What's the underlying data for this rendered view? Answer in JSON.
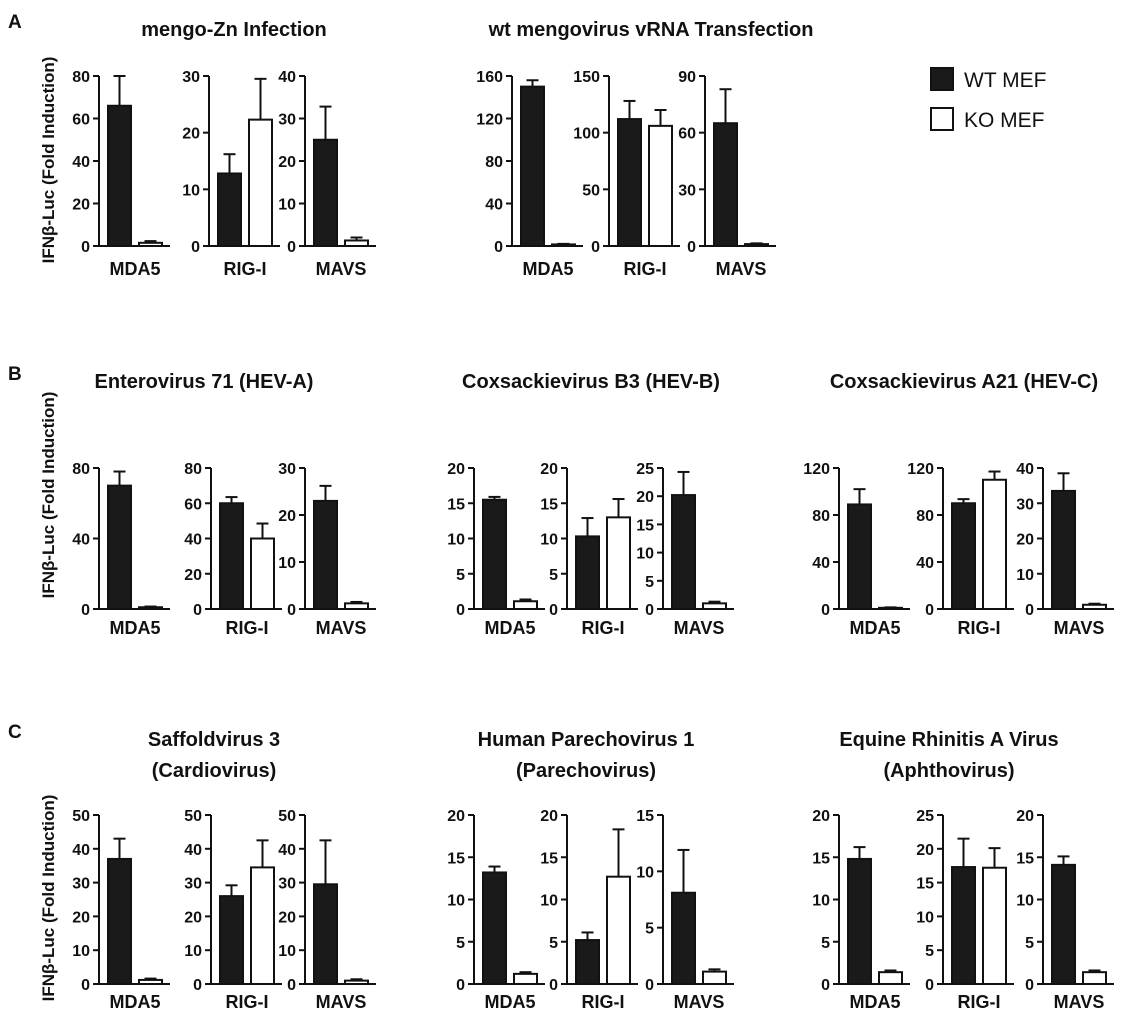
{
  "figure": {
    "ylabel": "IFNβ-Luc (Fold Induction)",
    "legend": [
      {
        "label": "WT MEF",
        "fill": "#1a1a1a"
      },
      {
        "label": "KO MEF",
        "fill": "#ffffff"
      }
    ],
    "colors": {
      "wt": "#1a1a1a",
      "ko": "#ffffff",
      "axis": "#111111"
    }
  },
  "chart_data": [
    {
      "type": "bar",
      "panel": "A",
      "group": "mengo-Zn Infection",
      "title": "mengo-Zn Infection",
      "categories": [
        "MDA5"
      ],
      "ylim": [
        0,
        80
      ],
      "yticks": [
        "0",
        "20",
        "40",
        "60",
        "80"
      ],
      "series": [
        {
          "name": "WT MEF",
          "values": [
            66
          ],
          "errors": [
            14
          ]
        },
        {
          "name": "KO MEF",
          "values": [
            1.5
          ],
          "errors": [
            0.8
          ]
        }
      ]
    },
    {
      "type": "bar",
      "panel": "A",
      "group": "mengo-Zn Infection",
      "categories": [
        "RIG-I"
      ],
      "ylim": [
        0,
        30
      ],
      "yticks": [
        "0",
        "10",
        "20",
        "30"
      ],
      "series": [
        {
          "name": "WT MEF",
          "values": [
            12.8
          ],
          "errors": [
            3.4
          ]
        },
        {
          "name": "KO MEF",
          "values": [
            22.3
          ],
          "errors": [
            7.2
          ]
        }
      ]
    },
    {
      "type": "bar",
      "panel": "A",
      "group": "mengo-Zn Infection",
      "categories": [
        "MAVS"
      ],
      "ylim": [
        0,
        40
      ],
      "yticks": [
        "0",
        "10",
        "20",
        "30",
        "40"
      ],
      "series": [
        {
          "name": "WT MEF",
          "values": [
            25
          ],
          "errors": [
            7.8
          ]
        },
        {
          "name": "KO MEF",
          "values": [
            1.3
          ],
          "errors": [
            0.7
          ]
        }
      ]
    },
    {
      "type": "bar",
      "panel": "A",
      "group": "wt mengovirus vRNA Transfection",
      "title": "wt mengovirus vRNA Transfection",
      "categories": [
        "MDA5"
      ],
      "ylim": [
        0,
        160
      ],
      "yticks": [
        "0",
        "40",
        "80",
        "120",
        "160"
      ],
      "series": [
        {
          "name": "WT MEF",
          "values": [
            150
          ],
          "errors": [
            6
          ]
        },
        {
          "name": "KO MEF",
          "values": [
            1.5
          ],
          "errors": [
            0.5
          ]
        }
      ]
    },
    {
      "type": "bar",
      "panel": "A",
      "group": "wt mengovirus vRNA Transfection",
      "categories": [
        "RIG-I"
      ],
      "ylim": [
        0,
        150
      ],
      "yticks": [
        "0",
        "50",
        "100",
        "150"
      ],
      "series": [
        {
          "name": "WT MEF",
          "values": [
            112
          ],
          "errors": [
            16
          ]
        },
        {
          "name": "KO MEF",
          "values": [
            106
          ],
          "errors": [
            14
          ]
        }
      ]
    },
    {
      "type": "bar",
      "panel": "A",
      "group": "wt mengovirus vRNA Transfection",
      "categories": [
        "MAVS"
      ],
      "ylim": [
        0,
        90
      ],
      "yticks": [
        "0",
        "30",
        "60",
        "90"
      ],
      "series": [
        {
          "name": "WT MEF",
          "values": [
            65
          ],
          "errors": [
            18
          ]
        },
        {
          "name": "KO MEF",
          "values": [
            1
          ],
          "errors": [
            0.4
          ]
        }
      ]
    },
    {
      "type": "bar",
      "panel": "B",
      "group": "Enterovirus 71 (HEV-A)",
      "title": "Enterovirus 71 (HEV-A)",
      "categories": [
        "MDA5"
      ],
      "ylim": [
        0,
        80
      ],
      "yticks": [
        "0",
        "40",
        "80"
      ],
      "series": [
        {
          "name": "WT MEF",
          "values": [
            70
          ],
          "errors": [
            8
          ]
        },
        {
          "name": "KO MEF",
          "values": [
            1
          ],
          "errors": [
            0.4
          ]
        }
      ]
    },
    {
      "type": "bar",
      "panel": "B",
      "group": "Enterovirus 71 (HEV-A)",
      "categories": [
        "RIG-I"
      ],
      "ylim": [
        0,
        80
      ],
      "yticks": [
        "0",
        "20",
        "40",
        "60",
        "80"
      ],
      "series": [
        {
          "name": "WT MEF",
          "values": [
            60
          ],
          "errors": [
            3.5
          ]
        },
        {
          "name": "KO MEF",
          "values": [
            40
          ],
          "errors": [
            8.5
          ]
        }
      ]
    },
    {
      "type": "bar",
      "panel": "B",
      "group": "Enterovirus 71 (HEV-A)",
      "categories": [
        "MAVS"
      ],
      "ylim": [
        0,
        30
      ],
      "yticks": [
        "0",
        "10",
        "20",
        "30"
      ],
      "series": [
        {
          "name": "WT MEF",
          "values": [
            23
          ],
          "errors": [
            3.2
          ]
        },
        {
          "name": "KO MEF",
          "values": [
            1.2
          ],
          "errors": [
            0.3
          ]
        }
      ]
    },
    {
      "type": "bar",
      "panel": "B",
      "group": "Coxsackievirus B3 (HEV-B)",
      "title": "Coxsackievirus B3 (HEV-B)",
      "categories": [
        "MDA5"
      ],
      "ylim": [
        0,
        20
      ],
      "yticks": [
        "0",
        "5",
        "10",
        "15",
        "20"
      ],
      "series": [
        {
          "name": "WT MEF",
          "values": [
            15.5
          ],
          "errors": [
            0.4
          ]
        },
        {
          "name": "KO MEF",
          "values": [
            1.1
          ],
          "errors": [
            0.25
          ]
        }
      ]
    },
    {
      "type": "bar",
      "panel": "B",
      "group": "Coxsackievirus B3 (HEV-B)",
      "categories": [
        "RIG-I"
      ],
      "ylim": [
        0,
        20
      ],
      "yticks": [
        "0",
        "5",
        "10",
        "15",
        "20"
      ],
      "series": [
        {
          "name": "WT MEF",
          "values": [
            10.3
          ],
          "errors": [
            2.6
          ]
        },
        {
          "name": "KO MEF",
          "values": [
            13
          ],
          "errors": [
            2.6
          ]
        }
      ]
    },
    {
      "type": "bar",
      "panel": "B",
      "group": "Coxsackievirus B3 (HEV-B)",
      "categories": [
        "MAVS"
      ],
      "ylim": [
        0,
        25
      ],
      "yticks": [
        "0",
        "5",
        "10",
        "15",
        "20",
        "25"
      ],
      "series": [
        {
          "name": "WT MEF",
          "values": [
            20.2
          ],
          "errors": [
            4.1
          ]
        },
        {
          "name": "KO MEF",
          "values": [
            1
          ],
          "errors": [
            0.3
          ]
        }
      ]
    },
    {
      "type": "bar",
      "panel": "B",
      "group": "Coxsackievirus A21 (HEV-C)",
      "title": "Coxsackievirus A21 (HEV-C)",
      "categories": [
        "MDA5"
      ],
      "ylim": [
        0,
        120
      ],
      "yticks": [
        "0",
        "40",
        "80",
        "120"
      ],
      "series": [
        {
          "name": "WT MEF",
          "values": [
            89
          ],
          "errors": [
            13
          ]
        },
        {
          "name": "KO MEF",
          "values": [
            1
          ],
          "errors": [
            0.4
          ]
        }
      ]
    },
    {
      "type": "bar",
      "panel": "B",
      "group": "Coxsackievirus A21 (HEV-C)",
      "categories": [
        "RIG-I"
      ],
      "ylim": [
        0,
        120
      ],
      "yticks": [
        "0",
        "40",
        "80",
        "120"
      ],
      "series": [
        {
          "name": "WT MEF",
          "values": [
            90
          ],
          "errors": [
            3.5
          ]
        },
        {
          "name": "KO MEF",
          "values": [
            110
          ],
          "errors": [
            7
          ]
        }
      ]
    },
    {
      "type": "bar",
      "panel": "B",
      "group": "Coxsackievirus A21 (HEV-C)",
      "categories": [
        "MAVS"
      ],
      "ylim": [
        0,
        40
      ],
      "yticks": [
        "0",
        "10",
        "20",
        "30",
        "40"
      ],
      "series": [
        {
          "name": "WT MEF",
          "values": [
            33.5
          ],
          "errors": [
            5
          ]
        },
        {
          "name": "KO MEF",
          "values": [
            1.2
          ],
          "errors": [
            0.3
          ]
        }
      ]
    },
    {
      "type": "bar",
      "panel": "C",
      "group": "Saffoldvirus 3 (Cardiovirus)",
      "title": [
        "Saffoldvirus 3",
        "(Cardiovirus)"
      ],
      "categories": [
        "MDA5"
      ],
      "ylim": [
        0,
        50
      ],
      "yticks": [
        "0",
        "10",
        "20",
        "30",
        "40",
        "50"
      ],
      "series": [
        {
          "name": "WT MEF",
          "values": [
            37
          ],
          "errors": [
            6
          ]
        },
        {
          "name": "KO MEF",
          "values": [
            1.2
          ],
          "errors": [
            0.4
          ]
        }
      ]
    },
    {
      "type": "bar",
      "panel": "C",
      "group": "Saffoldvirus 3 (Cardiovirus)",
      "categories": [
        "RIG-I"
      ],
      "ylim": [
        0,
        50
      ],
      "yticks": [
        "0",
        "10",
        "20",
        "30",
        "40",
        "50"
      ],
      "series": [
        {
          "name": "WT MEF",
          "values": [
            26
          ],
          "errors": [
            3.2
          ]
        },
        {
          "name": "KO MEF",
          "values": [
            34.5
          ],
          "errors": [
            8
          ]
        }
      ]
    },
    {
      "type": "bar",
      "panel": "C",
      "group": "Saffoldvirus 3 (Cardiovirus)",
      "categories": [
        "MAVS"
      ],
      "ylim": [
        0,
        50
      ],
      "yticks": [
        "0",
        "10",
        "20",
        "30",
        "40",
        "50"
      ],
      "series": [
        {
          "name": "WT MEF",
          "values": [
            29.5
          ],
          "errors": [
            13
          ]
        },
        {
          "name": "KO MEF",
          "values": [
            1
          ],
          "errors": [
            0.4
          ]
        }
      ]
    },
    {
      "type": "bar",
      "panel": "C",
      "group": "Human Parechovirus 1 (Parechovirus)",
      "title": [
        "Human Parechovirus 1",
        "(Parechovirus)"
      ],
      "categories": [
        "MDA5"
      ],
      "ylim": [
        0,
        20
      ],
      "yticks": [
        "0",
        "5",
        "10",
        "15",
        "20"
      ],
      "series": [
        {
          "name": "WT MEF",
          "values": [
            13.2
          ],
          "errors": [
            0.7
          ]
        },
        {
          "name": "KO MEF",
          "values": [
            1.2
          ],
          "errors": [
            0.2
          ]
        }
      ]
    },
    {
      "type": "bar",
      "panel": "C",
      "group": "Human Parechovirus 1 (Parechovirus)",
      "categories": [
        "RIG-I"
      ],
      "ylim": [
        0,
        20
      ],
      "yticks": [
        "0",
        "5",
        "10",
        "15",
        "20"
      ],
      "series": [
        {
          "name": "WT MEF",
          "values": [
            5.2
          ],
          "errors": [
            0.9
          ]
        },
        {
          "name": "KO MEF",
          "values": [
            12.7
          ],
          "errors": [
            5.6
          ]
        }
      ]
    },
    {
      "type": "bar",
      "panel": "C",
      "group": "Human Parechovirus 1 (Parechovirus)",
      "categories": [
        "MAVS"
      ],
      "ylim": [
        0,
        15
      ],
      "yticks": [
        "0",
        "5",
        "10",
        "15"
      ],
      "series": [
        {
          "name": "WT MEF",
          "values": [
            8.1
          ],
          "errors": [
            3.8
          ]
        },
        {
          "name": "KO MEF",
          "values": [
            1.1
          ],
          "errors": [
            0.2
          ]
        }
      ]
    },
    {
      "type": "bar",
      "panel": "C",
      "group": "Equine Rhinitis A Virus (Aphthovirus)",
      "title": [
        "Equine Rhinitis A Virus",
        "(Aphthovirus)"
      ],
      "categories": [
        "MDA5"
      ],
      "ylim": [
        0,
        20
      ],
      "yticks": [
        "0",
        "5",
        "10",
        "15",
        "20"
      ],
      "series": [
        {
          "name": "WT MEF",
          "values": [
            14.8
          ],
          "errors": [
            1.4
          ]
        },
        {
          "name": "KO MEF",
          "values": [
            1.4
          ],
          "errors": [
            0.2
          ]
        }
      ]
    },
    {
      "type": "bar",
      "panel": "C",
      "group": "Equine Rhinitis A Virus (Aphthovirus)",
      "categories": [
        "RIG-I"
      ],
      "ylim": [
        0,
        25
      ],
      "yticks": [
        "0",
        "5",
        "10",
        "15",
        "20",
        "25"
      ],
      "series": [
        {
          "name": "WT MEF",
          "values": [
            17.3
          ],
          "errors": [
            4.2
          ]
        },
        {
          "name": "KO MEF",
          "values": [
            17.2
          ],
          "errors": [
            2.9
          ]
        }
      ]
    },
    {
      "type": "bar",
      "panel": "C",
      "group": "Equine Rhinitis A Virus (Aphthovirus)",
      "categories": [
        "MAVS"
      ],
      "ylim": [
        0,
        20
      ],
      "yticks": [
        "0",
        "5",
        "10",
        "15",
        "20"
      ],
      "series": [
        {
          "name": "WT MEF",
          "values": [
            14.1
          ],
          "errors": [
            1
          ]
        },
        {
          "name": "KO MEF",
          "values": [
            1.4
          ],
          "errors": [
            0.2
          ]
        }
      ]
    }
  ]
}
